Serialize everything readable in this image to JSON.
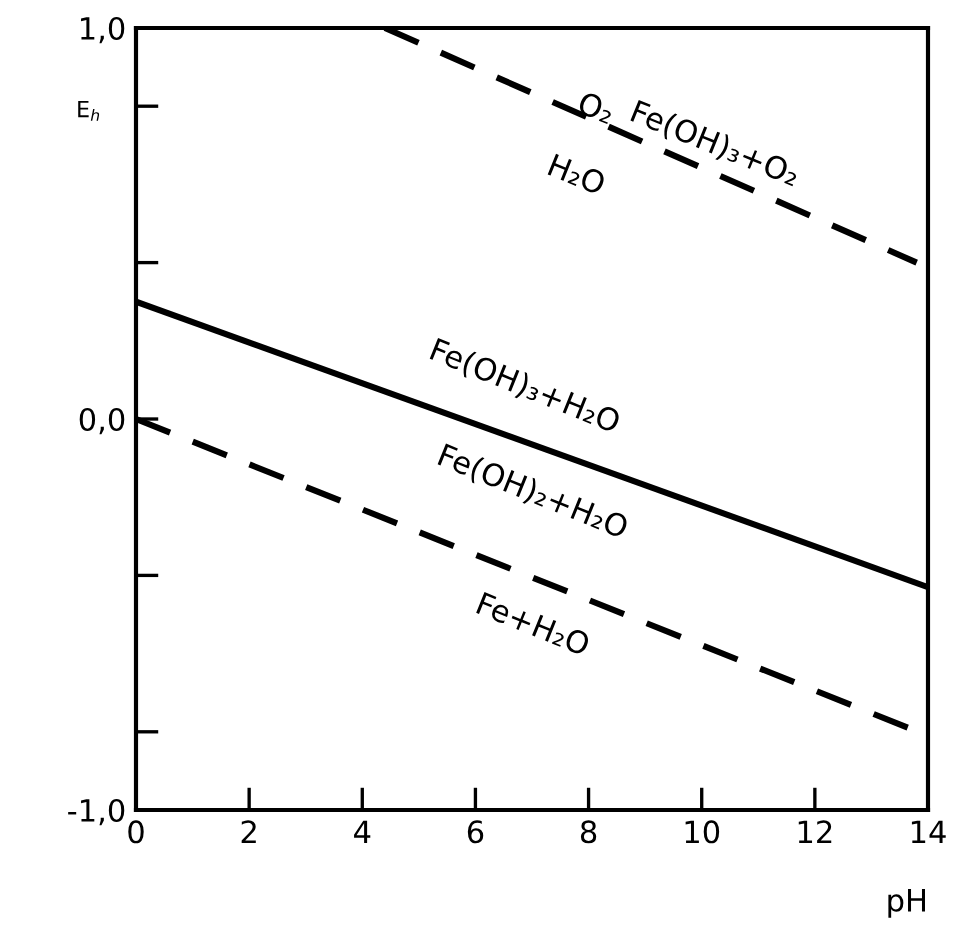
{
  "chart_data": {
    "type": "line",
    "xlabel": "pH",
    "ylabel": "E$_{h}$",
    "xlim": [
      0,
      14
    ],
    "ylim": [
      -1.0,
      1.0
    ],
    "xticks": [
      0,
      2,
      4,
      6,
      8,
      10,
      12,
      14
    ],
    "yticks": [
      {
        "value": -1.0,
        "label": "-1,0"
      },
      {
        "value": -0.8,
        "label": null
      },
      {
        "value": -0.4,
        "label": null
      },
      {
        "value": 0.0,
        "label": "0,0"
      },
      {
        "value": 0.4,
        "label": null
      },
      {
        "value": 0.8,
        "label": null
      },
      {
        "value": 1.0,
        "label": "1,0"
      }
    ],
    "series": [
      {
        "color": "#000000",
        "line_style": "dashed",
        "x": [
          4.4,
          13.8
        ],
        "values": [
          1.0,
          0.4
        ]
      },
      {
        "color": "#000000",
        "line_style": "solid",
        "x": [
          0,
          14
        ],
        "values": [
          0.3,
          -0.43
        ]
      },
      {
        "color": "#000000",
        "line_style": "dashed",
        "x": [
          0,
          14
        ],
        "values": [
          0.0,
          -0.81
        ]
      }
    ],
    "annotations": [
      "O₂",
      "Fe(OH)₃+O₂",
      "H₂O",
      "Fe(OH)₃+H₂O",
      "Fe(OH)₂+H₂O",
      "Fe+H₂O"
    ],
    "grid": false,
    "legend": false
  }
}
